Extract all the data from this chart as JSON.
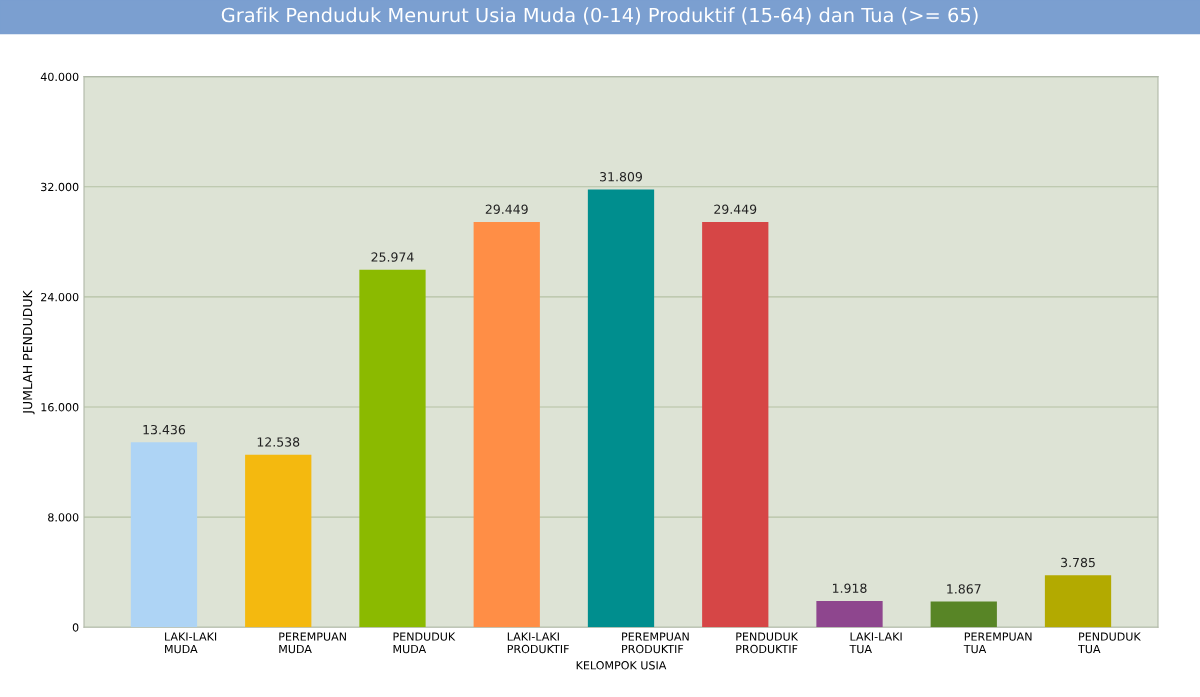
{
  "chart_data": {
    "type": "bar",
    "title": "Grafik Penduduk Menurut Usia Muda (0-14) Produktif (15-64) dan Tua (>= 65)",
    "xlabel": "KELOMPOK USIA",
    "ylabel": "JUMLAH PENDUDUK",
    "categories": [
      "LAKI-LAKI\nMUDA",
      "PEREMPUAN\nMUDA",
      "PENDUDUK\nMUDA",
      "LAKI-LAKI\nPRODUKTIF",
      "PEREMPUAN\nPRODUKTIF",
      "PENDUDUK\nPRODUKTIF",
      "LAKI-LAKI\nTUA",
      "PEREMPUAN\nTUA",
      "PENDUDUK\nTUA"
    ],
    "values": [
      13436,
      12538,
      25974,
      29449,
      31809,
      29449,
      1918,
      1867,
      3785
    ],
    "value_labels": [
      "13.436",
      "12.538",
      "25.974",
      "29.449",
      "31.809",
      "29.449",
      "1.918",
      "1.867",
      "3.785"
    ],
    "colors": [
      "#aed4f5",
      "#f4b90f",
      "#8bba00",
      "#ff8e46",
      "#008e8e",
      "#d64646",
      "#8e468e",
      "#588526",
      "#b3aa00"
    ],
    "ylim": [
      0,
      40000
    ],
    "yticks": [
      {
        "value": 0,
        "label": "0"
      },
      {
        "value": 8000,
        "label": "8.000"
      },
      {
        "value": 16000,
        "label": "16.000"
      },
      {
        "value": 24000,
        "label": "24.000"
      },
      {
        "value": 32000,
        "label": "32.000"
      },
      {
        "value": 40000,
        "label": "40.000"
      }
    ],
    "grid": "y"
  }
}
